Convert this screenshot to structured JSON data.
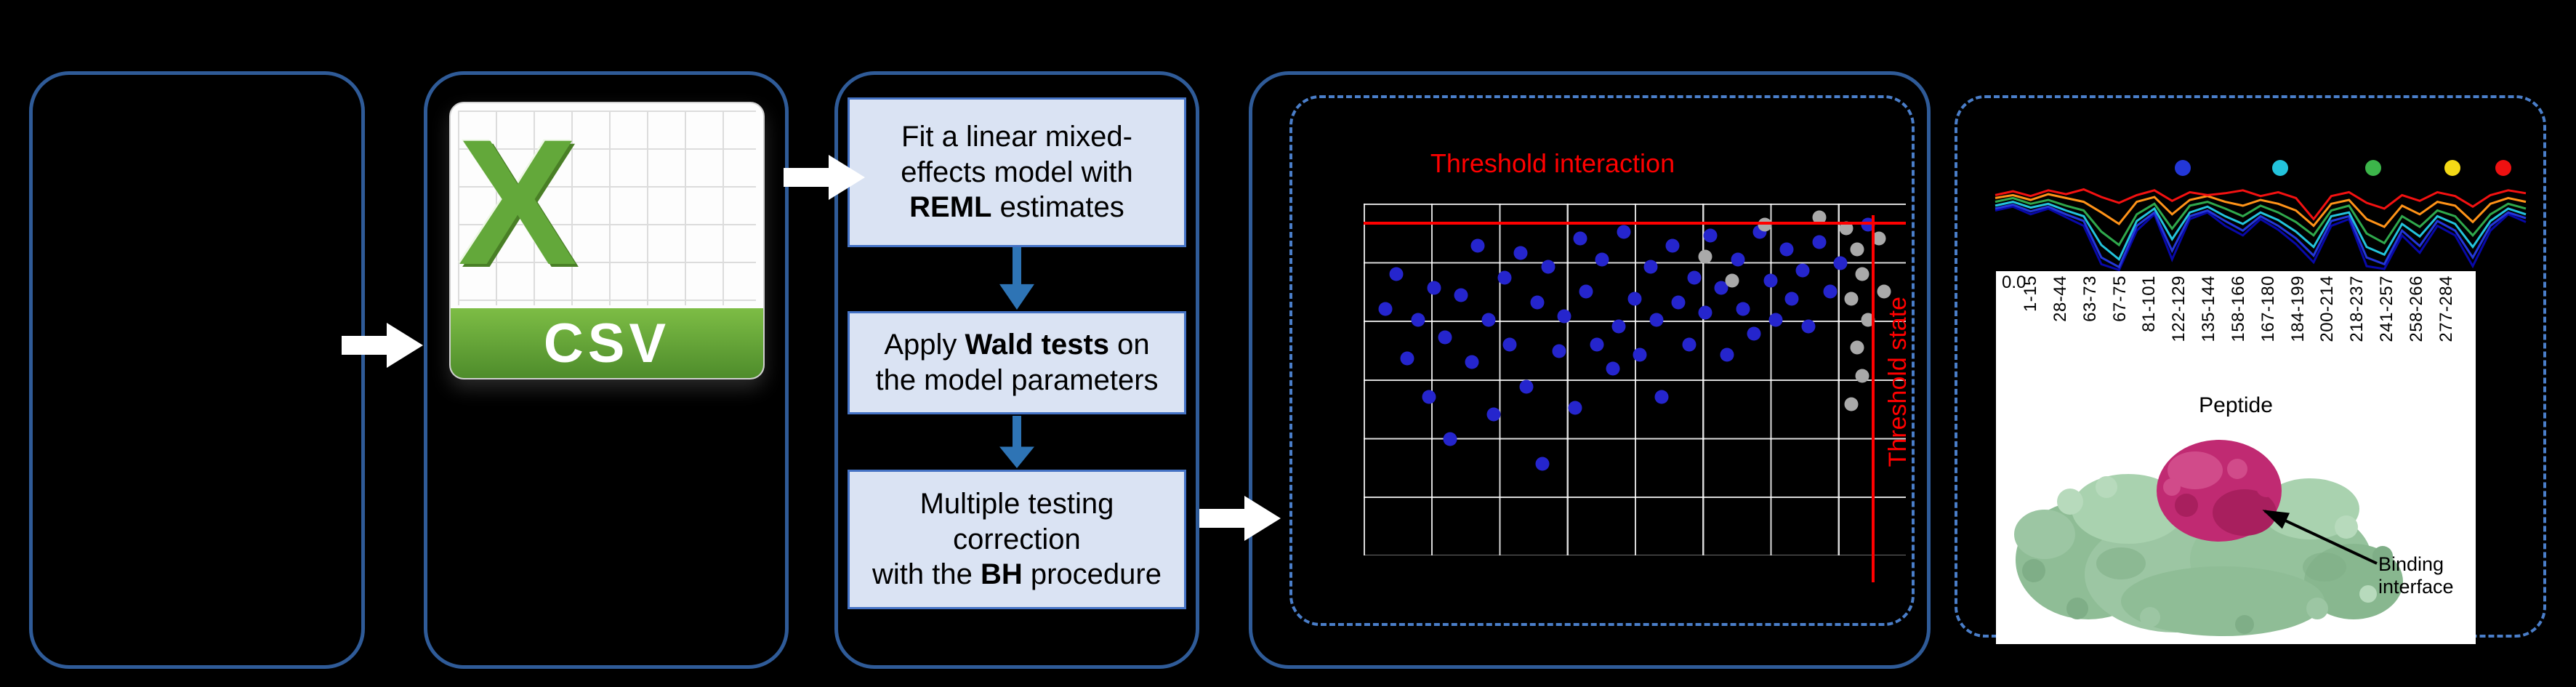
{
  "flow_boxes": [
    {
      "pre": "Fit a linear mixed-\neffects model with\n",
      "bold": "REML",
      "post": " estimates"
    },
    {
      "pre": "Apply ",
      "bold": "Wald tests",
      "post": " on\nthe model parameters"
    },
    {
      "pre": "Multiple testing\ncorrection\nwith the ",
      "bold": "BH",
      "post": " procedure"
    }
  ],
  "csv_icon": {
    "letter": "X",
    "label": "CSV"
  },
  "protein": {
    "annotation": "Binding interface",
    "surface_color": "#9cc6a3",
    "interface_color": "#c02a72"
  },
  "colors": {
    "panel_border": "#2f5b98",
    "dashed_border": "#4a7ec9",
    "box_fill": "#dae3f3",
    "box_border": "#4472c4",
    "threshold": "#ff0000",
    "arrow_white": "#ffffff",
    "arrow_blue": "#2e74b5"
  },
  "chart_data": [
    {
      "type": "scatter",
      "title": "",
      "xlabel": "",
      "ylabel": "",
      "grid": true,
      "threshold_labels": {
        "horizontal": "Threshold interaction",
        "vertical": "Threshold state"
      },
      "threshold_color": "#ff0000",
      "threshold_position_pct": {
        "horizontal_y": 5.2,
        "vertical_x": 93.7
      },
      "series": [
        {
          "name": "significant",
          "color": "#2525cd",
          "points": [
            [
              4,
              30
            ],
            [
              6,
              20
            ],
            [
              8,
              44
            ],
            [
              10,
              33
            ],
            [
              12,
              55
            ],
            [
              13,
              24
            ],
            [
              15,
              38
            ],
            [
              16,
              67
            ],
            [
              18,
              26
            ],
            [
              20,
              45
            ],
            [
              21,
              12
            ],
            [
              23,
              33
            ],
            [
              24,
              60
            ],
            [
              26,
              21
            ],
            [
              27,
              40
            ],
            [
              29,
              14
            ],
            [
              30,
              52
            ],
            [
              32,
              28
            ],
            [
              33,
              74
            ],
            [
              34,
              18
            ],
            [
              36,
              42
            ],
            [
              37,
              32
            ],
            [
              39,
              58
            ],
            [
              40,
              10
            ],
            [
              41,
              25
            ],
            [
              43,
              40
            ],
            [
              44,
              16
            ],
            [
              46,
              47
            ],
            [
              47,
              35
            ],
            [
              48,
              8
            ],
            [
              50,
              27
            ],
            [
              51,
              43
            ],
            [
              53,
              18
            ],
            [
              54,
              33
            ],
            [
              55,
              55
            ],
            [
              57,
              12
            ],
            [
              58,
              28
            ],
            [
              60,
              40
            ],
            [
              61,
              21
            ],
            [
              63,
              31
            ],
            [
              64,
              9
            ],
            [
              66,
              24
            ],
            [
              67,
              43
            ],
            [
              69,
              16
            ],
            [
              70,
              30
            ],
            [
              72,
              37
            ],
            [
              73,
              8
            ],
            [
              75,
              22
            ],
            [
              76,
              33
            ],
            [
              78,
              13
            ],
            [
              79,
              27
            ],
            [
              81,
              19
            ],
            [
              82,
              35
            ],
            [
              84,
              11
            ],
            [
              86,
              25
            ],
            [
              88,
              17
            ],
            [
              93,
              6
            ]
          ]
        },
        {
          "name": "non_significant",
          "color": "#a9a9a9",
          "points": [
            [
              84,
              4
            ],
            [
              89,
              7
            ],
            [
              91,
              13
            ],
            [
              92,
              20
            ],
            [
              90,
              27
            ],
            [
              93,
              33
            ],
            [
              91,
              41
            ],
            [
              92,
              49
            ],
            [
              90,
              57
            ],
            [
              95,
              10
            ],
            [
              96,
              25
            ],
            [
              63,
              15
            ],
            [
              68,
              22
            ],
            [
              74,
              6
            ]
          ]
        }
      ]
    },
    {
      "type": "line",
      "title": "",
      "xlabel": "Peptide",
      "xticklabels": [
        "1-15",
        "28-44",
        "63-73",
        "67-75",
        "81-101",
        "122-129",
        "135-144",
        "158-166",
        "167-180",
        "184-199",
        "200-214",
        "218-237",
        "241-257",
        "258-266",
        "277-284"
      ],
      "yticklabels": [
        "0.0"
      ],
      "legend_dot_colors": [
        "#2337d8",
        "#23c3dc",
        "#3cb54a",
        "#f4d916",
        "#ee1111"
      ],
      "series": [
        {
          "name": "series-navy",
          "color": "#0808a8",
          "values": [
            0.64,
            0.68,
            0.6,
            0.66,
            0.57,
            0.48,
            0.08,
            0.02,
            0.43,
            0.6,
            0.13,
            0.55,
            0.62,
            0.48,
            0.38,
            0.55,
            0.44,
            0.29,
            0.1,
            0.48,
            0.55,
            0.06,
            0.03,
            0.38,
            0.2,
            0.48,
            0.38,
            0.06,
            0.43,
            0.6,
            0.52
          ]
        },
        {
          "name": "series-blue",
          "color": "#2337d8",
          "values": [
            0.66,
            0.7,
            0.63,
            0.68,
            0.6,
            0.53,
            0.15,
            0.05,
            0.48,
            0.62,
            0.22,
            0.58,
            0.64,
            0.53,
            0.43,
            0.58,
            0.48,
            0.35,
            0.17,
            0.53,
            0.58,
            0.15,
            0.08,
            0.43,
            0.27,
            0.53,
            0.43,
            0.15,
            0.48,
            0.62,
            0.56
          ]
        },
        {
          "name": "series-cyan",
          "color": "#23c3dc",
          "values": [
            0.69,
            0.73,
            0.67,
            0.71,
            0.64,
            0.58,
            0.28,
            0.13,
            0.53,
            0.66,
            0.34,
            0.62,
            0.68,
            0.58,
            0.5,
            0.62,
            0.54,
            0.42,
            0.26,
            0.58,
            0.62,
            0.26,
            0.18,
            0.5,
            0.37,
            0.58,
            0.5,
            0.26,
            0.53,
            0.66,
            0.6
          ]
        },
        {
          "name": "series-green",
          "color": "#2fa84c",
          "values": [
            0.73,
            0.77,
            0.71,
            0.75,
            0.69,
            0.64,
            0.42,
            0.28,
            0.6,
            0.71,
            0.45,
            0.69,
            0.73,
            0.66,
            0.58,
            0.69,
            0.62,
            0.52,
            0.38,
            0.64,
            0.69,
            0.4,
            0.3,
            0.58,
            0.47,
            0.64,
            0.58,
            0.38,
            0.6,
            0.71,
            0.66
          ]
        },
        {
          "name": "series-orange",
          "color": "#ff9318",
          "values": [
            0.77,
            0.8,
            0.75,
            0.81,
            0.77,
            0.73,
            0.62,
            0.5,
            0.73,
            0.78,
            0.6,
            0.75,
            0.79,
            0.73,
            0.69,
            0.75,
            0.71,
            0.64,
            0.48,
            0.71,
            0.75,
            0.55,
            0.47,
            0.69,
            0.6,
            0.73,
            0.69,
            0.52,
            0.71,
            0.77,
            0.73
          ]
        },
        {
          "name": "series-red",
          "color": "#f31111",
          "values": [
            0.8,
            0.84,
            0.79,
            0.85,
            0.81,
            0.86,
            0.78,
            0.72,
            0.8,
            0.85,
            0.74,
            0.83,
            0.8,
            0.82,
            0.85,
            0.79,
            0.83,
            0.77,
            0.55,
            0.79,
            0.83,
            0.72,
            0.66,
            0.8,
            0.74,
            0.83,
            0.79,
            0.68,
            0.8,
            0.85,
            0.82
          ]
        }
      ]
    }
  ]
}
